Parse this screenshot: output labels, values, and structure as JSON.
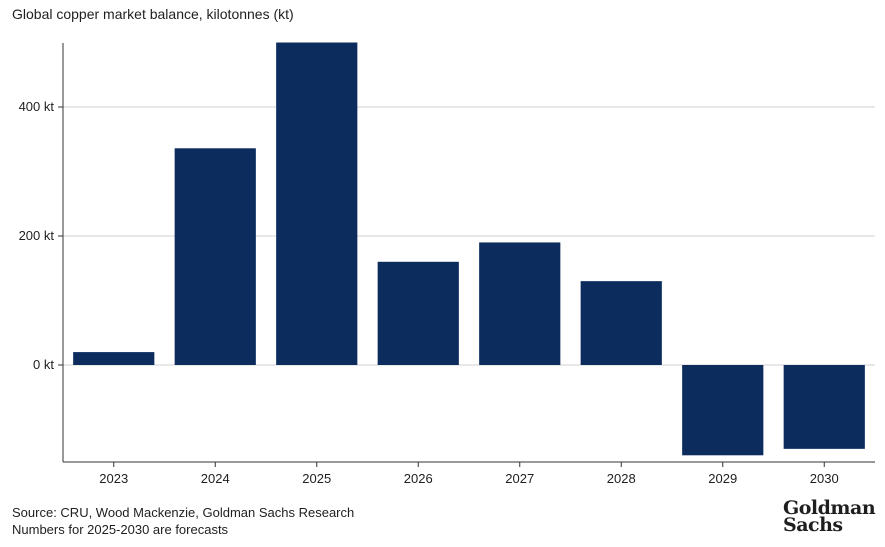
{
  "title": "Global copper market balance, kilotonnes (kt)",
  "footer": {
    "source": "Source: CRU, Wood Mackenzie, Goldman Sachs Research",
    "note": "Numbers for 2025-2030 are forecasts"
  },
  "logo": {
    "line1": "Goldman",
    "line2": "Sachs"
  },
  "chart_data": {
    "type": "bar",
    "title": "Global copper market balance, kilotonnes (kt)",
    "categories": [
      "2023",
      "2024",
      "2025",
      "2026",
      "2027",
      "2028",
      "2029",
      "2030"
    ],
    "values": [
      20,
      336,
      500,
      160,
      190,
      130,
      -140,
      -130
    ],
    "ylim": [
      -150,
      500
    ],
    "yticks": [
      0,
      200,
      400
    ],
    "ytick_labels": [
      "0 kt",
      "200 kt",
      "400 kt"
    ],
    "grid": true,
    "bar_color": "#0c2c5e",
    "grid_color": "#d0d0d0"
  }
}
